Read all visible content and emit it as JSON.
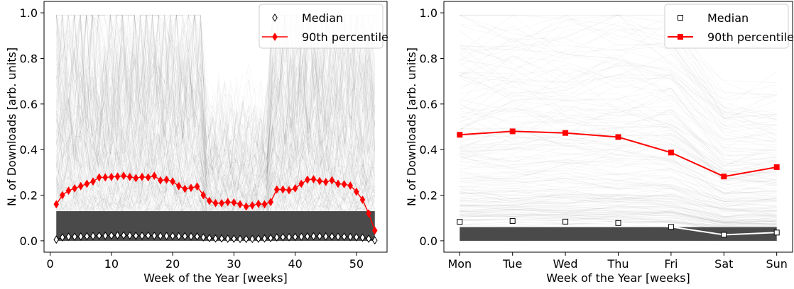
{
  "chart_data": [
    {
      "type": "line",
      "xlabel": "Week of the Year [weeks]",
      "ylabel": "N. of Downloads [arb. units]",
      "xlim": [
        -1,
        55
      ],
      "ylim": [
        -0.05,
        1.05
      ],
      "xticks": [
        0,
        10,
        20,
        30,
        40,
        50
      ],
      "yticks": [
        0.0,
        0.2,
        0.4,
        0.6,
        0.8,
        1.0
      ],
      "ytick_labels": [
        "0.0",
        "0.2",
        "0.4",
        "0.6",
        "0.8",
        "1.0"
      ],
      "legend_position": "top-right",
      "x": [
        1,
        2,
        3,
        4,
        5,
        6,
        7,
        8,
        9,
        10,
        11,
        12,
        13,
        14,
        15,
        16,
        17,
        18,
        19,
        20,
        21,
        22,
        23,
        24,
        25,
        26,
        27,
        28,
        29,
        30,
        31,
        32,
        33,
        34,
        35,
        36,
        37,
        38,
        39,
        40,
        41,
        42,
        43,
        44,
        45,
        46,
        47,
        48,
        49,
        50,
        51,
        52,
        53
      ],
      "series": [
        {
          "name": "Median",
          "color": "#000000",
          "marker": "diamond-open",
          "values": [
            0.005,
            0.015,
            0.018,
            0.018,
            0.019,
            0.02,
            0.021,
            0.022,
            0.022,
            0.023,
            0.024,
            0.024,
            0.023,
            0.022,
            0.022,
            0.023,
            0.022,
            0.021,
            0.021,
            0.021,
            0.02,
            0.02,
            0.019,
            0.019,
            0.015,
            0.012,
            0.01,
            0.01,
            0.009,
            0.009,
            0.008,
            0.008,
            0.008,
            0.009,
            0.01,
            0.012,
            0.015,
            0.016,
            0.016,
            0.017,
            0.018,
            0.019,
            0.02,
            0.02,
            0.019,
            0.019,
            0.018,
            0.018,
            0.017,
            0.016,
            0.014,
            0.009,
            0.002
          ]
        },
        {
          "name": "90th percentile",
          "color": "#ff0000",
          "marker": "diamond-filled",
          "values": [
            0.16,
            0.2,
            0.22,
            0.23,
            0.24,
            0.25,
            0.26,
            0.278,
            0.278,
            0.28,
            0.282,
            0.285,
            0.28,
            0.275,
            0.28,
            0.278,
            0.285,
            0.265,
            0.268,
            0.26,
            0.24,
            0.228,
            0.232,
            0.238,
            0.2,
            0.175,
            0.165,
            0.165,
            0.17,
            0.168,
            0.16,
            0.15,
            0.155,
            0.162,
            0.16,
            0.17,
            0.225,
            0.225,
            0.222,
            0.23,
            0.25,
            0.268,
            0.27,
            0.262,
            0.258,
            0.265,
            0.25,
            0.248,
            0.242,
            0.215,
            0.18,
            0.12,
            0.045
          ]
        }
      ]
    },
    {
      "type": "line",
      "xlabel": "Week of the Year [weeks]",
      "ylabel": "N. of Downloads [arb. units]",
      "categories": [
        "Mon",
        "Tue",
        "Wed",
        "Thu",
        "Fri",
        "Sat",
        "Sun"
      ],
      "ylim": [
        -0.05,
        1.05
      ],
      "yticks": [
        0.0,
        0.2,
        0.4,
        0.6,
        0.8,
        1.0
      ],
      "ytick_labels": [
        "0.0",
        "0.2",
        "0.4",
        "0.6",
        "0.8",
        "1.0"
      ],
      "legend_position": "top-right",
      "series": [
        {
          "name": "Median",
          "color": "#ffffff",
          "marker": "square-open",
          "values": [
            0.083,
            0.087,
            0.084,
            0.078,
            0.061,
            0.026,
            0.036
          ]
        },
        {
          "name": "90th percentile",
          "color": "#ff0000",
          "marker": "square-filled",
          "values": [
            0.465,
            0.48,
            0.473,
            0.455,
            0.387,
            0.282,
            0.323
          ]
        }
      ]
    }
  ]
}
